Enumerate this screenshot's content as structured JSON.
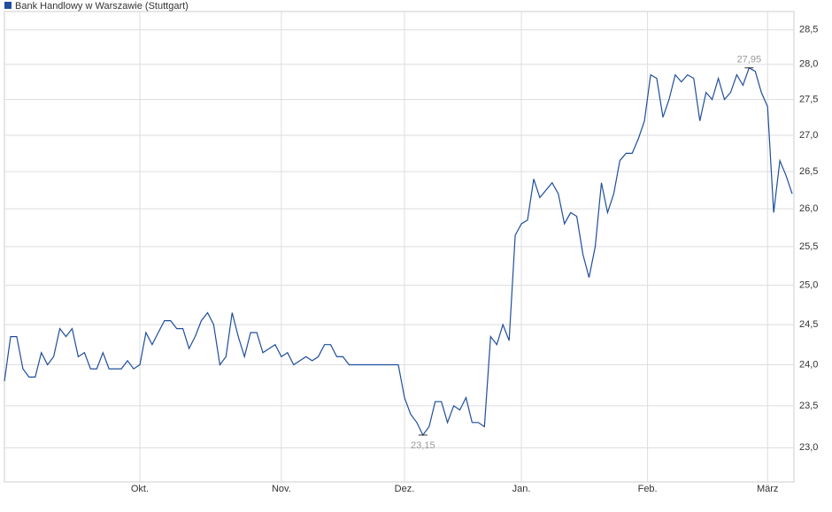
{
  "chart_data": {
    "type": "line",
    "log_scale": true,
    "grid": true,
    "legend": "top-left",
    "x": [
      0,
      1,
      2,
      3,
      4,
      5,
      6,
      7,
      8,
      9,
      10,
      11,
      12,
      13,
      14,
      15,
      16,
      17,
      18,
      19,
      20,
      21,
      22,
      23,
      24,
      25,
      26,
      27,
      28,
      29,
      30,
      31,
      32,
      33,
      34,
      35,
      36,
      37,
      38,
      39,
      40,
      41,
      42,
      43,
      44,
      45,
      46,
      47,
      48,
      49,
      50,
      51,
      52,
      53,
      54,
      55,
      56,
      57,
      58,
      59,
      60,
      61,
      62,
      63,
      64,
      65,
      66,
      67,
      68,
      69,
      70,
      71,
      72,
      73,
      74,
      75,
      76,
      77,
      78,
      79,
      80,
      81,
      82,
      83,
      84,
      85,
      86,
      87,
      88,
      89,
      90,
      91,
      92,
      93,
      94,
      95,
      96,
      97,
      98,
      99,
      100,
      101,
      102,
      103,
      104,
      105,
      106,
      107,
      108,
      109,
      110,
      111,
      112,
      113,
      114,
      115,
      116,
      117,
      118,
      119,
      120,
      121,
      122,
      123,
      124,
      125,
      126,
      127,
      128
    ],
    "series": [
      {
        "name": "Bank Handlowy w Warszawie (Stuttgart)",
        "color": "#1f4e9c",
        "values": [
          23.8,
          24.35,
          24.35,
          23.95,
          23.85,
          23.85,
          24.15,
          24.0,
          24.1,
          24.45,
          24.35,
          24.45,
          24.1,
          24.15,
          23.95,
          23.95,
          24.15,
          23.95,
          23.95,
          23.95,
          24.05,
          23.95,
          24.0,
          24.4,
          24.25,
          24.4,
          24.55,
          24.55,
          24.45,
          24.45,
          24.2,
          24.35,
          24.55,
          24.65,
          24.5,
          24.0,
          24.1,
          24.65,
          24.35,
          24.1,
          24.4,
          24.4,
          24.15,
          24.2,
          24.25,
          24.1,
          24.15,
          24.0,
          24.05,
          24.1,
          24.05,
          24.1,
          24.25,
          24.25,
          24.1,
          24.1,
          24.0,
          24.0,
          24.0,
          24.0,
          24.0,
          24.0,
          24.0,
          24.0,
          24.0,
          23.6,
          23.4,
          23.3,
          23.15,
          23.25,
          23.55,
          23.55,
          23.3,
          23.5,
          23.45,
          23.6,
          23.3,
          23.3,
          23.25,
          24.35,
          24.25,
          24.5,
          24.3,
          25.65,
          25.8,
          25.85,
          26.4,
          26.15,
          26.25,
          26.35,
          26.2,
          25.8,
          25.95,
          25.9,
          25.4,
          25.1,
          25.5,
          26.35,
          25.95,
          26.2,
          26.65,
          26.75,
          26.75,
          26.95,
          27.2,
          27.85,
          27.8,
          27.25,
          27.5,
          27.85,
          27.75,
          27.85,
          27.8,
          27.2,
          27.6,
          27.5,
          27.8,
          27.5,
          27.6,
          27.85,
          27.7,
          27.95,
          27.9,
          27.6,
          27.4,
          25.95,
          26.65,
          26.45,
          26.2
        ]
      }
    ],
    "annotations": [
      {
        "x": 68,
        "y": 23.15,
        "label": "23,15"
      },
      {
        "x": 121,
        "y": 27.95,
        "label": "27,95"
      }
    ],
    "xlim": [
      0,
      128
    ],
    "xticks": [
      {
        "value": 22,
        "label": "Okt."
      },
      {
        "value": 45,
        "label": "Nov."
      },
      {
        "value": 65,
        "label": "Dez."
      },
      {
        "value": 84,
        "label": "Jan."
      },
      {
        "value": 104.5,
        "label": "Feb."
      },
      {
        "value": 124,
        "label": "März"
      }
    ],
    "ylim": [
      22.6,
      28.77
    ],
    "yticks": [
      {
        "value": 23,
        "label": "23,0"
      },
      {
        "value": 23.5,
        "label": "23,5"
      },
      {
        "value": 24,
        "label": "24,0"
      },
      {
        "value": 24.5,
        "label": "24,5"
      },
      {
        "value": 25,
        "label": "25,0"
      },
      {
        "value": 25.5,
        "label": "25,5"
      },
      {
        "value": 26,
        "label": "26,0"
      },
      {
        "value": 26.5,
        "label": "26,5"
      },
      {
        "value": 27,
        "label": "27,0"
      },
      {
        "value": 27.5,
        "label": "27,5"
      },
      {
        "value": 28,
        "label": "28,0"
      },
      {
        "value": 28.5,
        "label": "28,5"
      }
    ]
  }
}
